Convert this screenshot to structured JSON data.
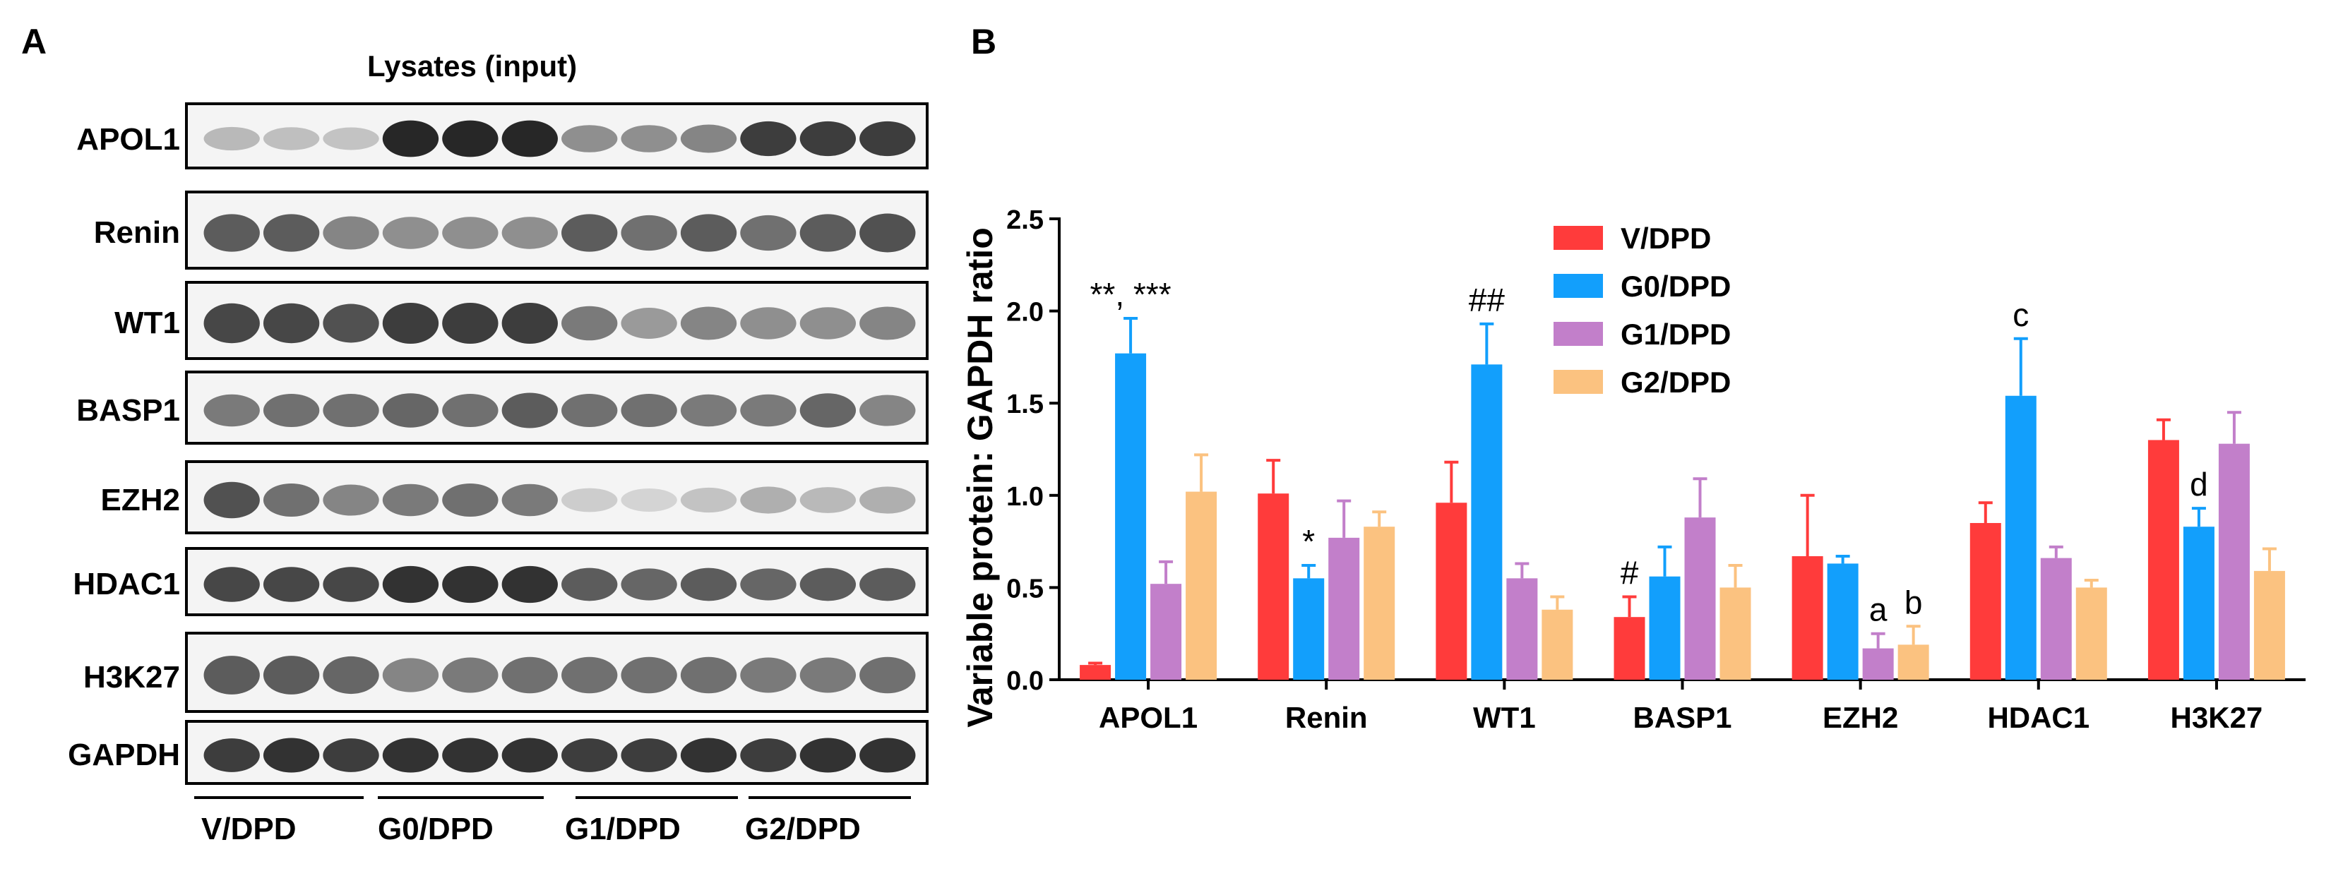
{
  "panel_a": {
    "letter": "A",
    "title": "Lysates (input)",
    "blots": [
      "APOL1",
      "Renin",
      "WT1",
      "BASP1",
      "EZH2",
      "HDAC1",
      "H3K27",
      "GAPDH"
    ],
    "groups": [
      "V/DPD",
      "G0/DPD",
      "G1/DPD",
      "G2/DPD"
    ]
  },
  "panel_b": {
    "letter": "B"
  },
  "chart_data": {
    "type": "bar",
    "title": "",
    "xlabel": "",
    "ylabel": "Variable protein: GAPDH ratio",
    "ylim": [
      0,
      2.5
    ],
    "yticks": [
      "0.0",
      "0.5",
      "1.0",
      "1.5",
      "2.0",
      "2.5"
    ],
    "grid": false,
    "legend_position": "top-center",
    "categories": [
      "APOL1",
      "Renin",
      "WT1",
      "BASP1",
      "EZH2",
      "HDAC1",
      "H3K27"
    ],
    "series": [
      {
        "name": "V/DPD",
        "color": "#ff3b3b",
        "values": [
          0.08,
          1.01,
          0.96,
          0.34,
          0.67,
          0.85,
          1.3
        ],
        "errors": [
          0.01,
          0.18,
          0.22,
          0.11,
          0.33,
          0.11,
          0.11
        ]
      },
      {
        "name": "G0/DPD",
        "color": "#129ffc",
        "values": [
          1.77,
          0.55,
          1.71,
          0.56,
          0.63,
          1.54,
          0.83
        ],
        "errors": [
          0.19,
          0.07,
          0.22,
          0.16,
          0.04,
          0.31,
          0.1
        ]
      },
      {
        "name": "G1/DPD",
        "color": "#c27fca",
        "values": [
          0.52,
          0.77,
          0.55,
          0.88,
          0.17,
          0.66,
          1.28
        ],
        "errors": [
          0.12,
          0.2,
          0.08,
          0.21,
          0.08,
          0.06,
          0.17
        ]
      },
      {
        "name": "G2/DPD",
        "color": "#fbc280",
        "values": [
          1.02,
          0.83,
          0.38,
          0.5,
          0.19,
          0.5,
          0.59
        ],
        "errors": [
          0.2,
          0.08,
          0.07,
          0.12,
          0.1,
          0.04,
          0.12
        ]
      }
    ],
    "annotations": [
      {
        "text": "**, ***",
        "category": "APOL1",
        "series": 1
      },
      {
        "text": "*",
        "category": "Renin",
        "series": 1
      },
      {
        "text": "##",
        "category": "WT1",
        "series": 1
      },
      {
        "text": "#",
        "category": "BASP1",
        "series": 0
      },
      {
        "text": "a",
        "category": "EZH2",
        "series": 2
      },
      {
        "text": "b",
        "category": "EZH2",
        "series": 3
      },
      {
        "text": "c",
        "category": "HDAC1",
        "series": 1
      },
      {
        "text": "d",
        "category": "H3K27",
        "series": 1
      }
    ]
  }
}
